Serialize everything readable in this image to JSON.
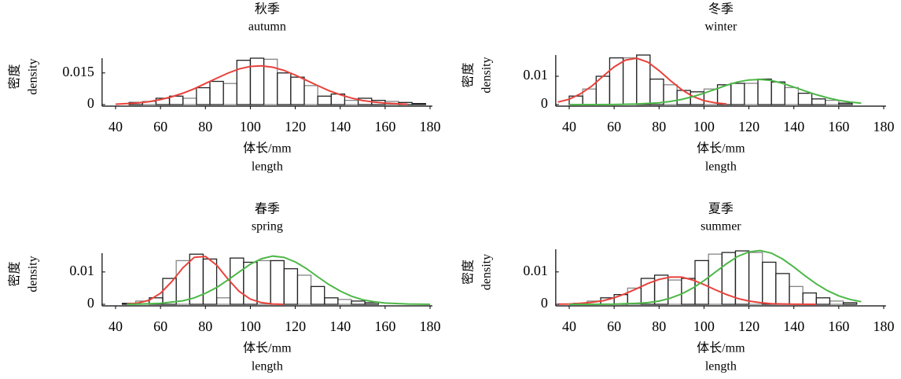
{
  "chart_data": [
    {
      "type": "histogram",
      "title": "秋季",
      "subtitle": "autumn",
      "xlabel": [
        "体长/mm",
        "length"
      ],
      "ylabel": [
        "密度",
        "density"
      ],
      "bins": [
        46,
        52,
        58,
        64,
        70,
        76,
        82,
        88,
        94,
        100,
        106,
        112,
        118,
        124,
        130,
        136,
        142,
        148,
        154,
        160,
        166,
        172,
        178
      ],
      "values": [
        0.001,
        0.0015,
        0.003,
        0.004,
        0.003,
        0.008,
        0.011,
        0.01,
        0.021,
        0.022,
        0.0215,
        0.015,
        0.013,
        0.009,
        0.004,
        0.005,
        0.002,
        0.003,
        0.002,
        0.0015,
        0.001,
        0.0005
      ],
      "bar_color": "#222222",
      "lines": [
        {
          "color": "#e8423b",
          "x": [
            40,
            45,
            50,
            55,
            60,
            65,
            70,
            75,
            80,
            85,
            90,
            95,
            100,
            105,
            110,
            115,
            120,
            125,
            130,
            135,
            140,
            145,
            150,
            155,
            160,
            165,
            170
          ],
          "values": [
            0.0002,
            0.0005,
            0.0008,
            0.0014,
            0.0024,
            0.0037,
            0.0054,
            0.0075,
            0.01,
            0.0125,
            0.0149,
            0.0169,
            0.0181,
            0.0184,
            0.0177,
            0.0162,
            0.014,
            0.0115,
            0.009,
            0.0066,
            0.0047,
            0.0031,
            0.0019,
            0.0012,
            0.0007,
            0.0004,
            0.0002
          ]
        }
      ],
      "xlim": [
        34,
        181
      ],
      "xticks": [
        40,
        60,
        80,
        100,
        120,
        140,
        160,
        180
      ],
      "ylim": [
        0,
        0.022
      ],
      "yticks": [
        0,
        0.015
      ]
    },
    {
      "type": "histogram",
      "title": "冬季",
      "subtitle": "winter",
      "xlabel": [
        "体长/mm",
        "length"
      ],
      "ylabel": [
        "密度",
        "density"
      ],
      "bins": [
        40,
        46,
        52,
        58,
        64,
        70,
        76,
        82,
        88,
        94,
        100,
        106,
        112,
        118,
        124,
        130,
        136,
        142,
        148,
        154,
        160,
        166
      ],
      "values": [
        0.003,
        0.0055,
        0.01,
        0.0165,
        0.0165,
        0.0175,
        0.009,
        0.007,
        0.005,
        0.0045,
        0.0055,
        0.007,
        0.0075,
        0.0075,
        0.009,
        0.008,
        0.006,
        0.004,
        0.002,
        0.0015,
        0.0005
      ],
      "bar_color": "#222222",
      "lines": [
        {
          "color": "#e8423b",
          "x": [
            35,
            40,
            45,
            50,
            55,
            60,
            65,
            70,
            75,
            80,
            85,
            90,
            95,
            100,
            105,
            110
          ],
          "values": [
            0.0009,
            0.0019,
            0.0038,
            0.0065,
            0.01,
            0.0133,
            0.0157,
            0.0164,
            0.015,
            0.012,
            0.0085,
            0.0053,
            0.0029,
            0.0014,
            0.0006,
            0.0002
          ]
        },
        {
          "color": "#4db848",
          "x": [
            40,
            50,
            60,
            70,
            80,
            85,
            90,
            95,
            100,
            105,
            110,
            115,
            120,
            125,
            130,
            135,
            140,
            145,
            150,
            155,
            160,
            165,
            170
          ],
          "values": [
            0,
            0,
            3e-05,
            0.0002,
            0.0006,
            0.0011,
            0.0018,
            0.0028,
            0.004,
            0.0054,
            0.0068,
            0.008,
            0.0087,
            0.0089,
            0.0085,
            0.0075,
            0.0062,
            0.0048,
            0.0035,
            0.0024,
            0.0015,
            0.0009,
            0.0005
          ]
        }
      ],
      "xlim": [
        34,
        181
      ],
      "xticks": [
        40,
        60,
        80,
        100,
        120,
        140,
        160,
        180
      ],
      "ylim": [
        0,
        0.0175
      ],
      "yticks": [
        0,
        0.01
      ]
    },
    {
      "type": "histogram",
      "title": "春季",
      "subtitle": "spring",
      "xlabel": [
        "体长/mm",
        "length"
      ],
      "ylabel": [
        "密度",
        "density"
      ],
      "bins": [
        43,
        49,
        55,
        61,
        67,
        73,
        79,
        85,
        91,
        97,
        103,
        109,
        115,
        121,
        127,
        133,
        139,
        145,
        151,
        157
      ],
      "values": [
        0.0003,
        0.001,
        0.002,
        0.008,
        0.0135,
        0.0155,
        0.014,
        0.002,
        0.0143,
        0.013,
        0.0135,
        0.0135,
        0.011,
        0.009,
        0.0055,
        0.002,
        0.0015,
        0.001,
        0.0005
      ],
      "bar_color": "#222222",
      "lines": [
        {
          "color": "#e8423b",
          "x": [
            45,
            50,
            55,
            60,
            65,
            70,
            75,
            80,
            85,
            90,
            95,
            100,
            105,
            110,
            115
          ],
          "values": [
            0.0001,
            0.0004,
            0.0013,
            0.0034,
            0.007,
            0.0113,
            0.0145,
            0.0148,
            0.0121,
            0.0078,
            0.004,
            0.0016,
            0.0005,
            0.0001,
            0
          ]
        },
        {
          "color": "#4db848",
          "x": [
            45,
            50,
            60,
            70,
            75,
            80,
            85,
            90,
            95,
            100,
            105,
            110,
            115,
            120,
            125,
            130,
            135,
            140,
            145,
            150,
            155,
            160,
            170,
            180
          ],
          "values": [
            0,
            5e-05,
            0.0003,
            0.0011,
            0.002,
            0.0034,
            0.0052,
            0.0075,
            0.01,
            0.0124,
            0.0141,
            0.0149,
            0.0145,
            0.0131,
            0.011,
            0.0085,
            0.0061,
            0.0041,
            0.0025,
            0.0014,
            0.0008,
            0.0004,
            0.0001,
            0
          ]
        }
      ],
      "xlim": [
        34,
        181
      ],
      "xticks": [
        40,
        60,
        80,
        100,
        120,
        140,
        160,
        180
      ],
      "ylim": [
        0,
        0.0158
      ],
      "yticks": [
        0,
        0.01
      ]
    },
    {
      "type": "histogram",
      "title": "夏季",
      "subtitle": "summer",
      "xlabel": [
        "体长/mm",
        "length"
      ],
      "ylabel": [
        "密度",
        "density"
      ],
      "bins": [
        42,
        48,
        54,
        60,
        66,
        72,
        78,
        84,
        90,
        96,
        102,
        108,
        114,
        120,
        126,
        132,
        138,
        144,
        150,
        156,
        162,
        168
      ],
      "values": [
        0.0003,
        0.001,
        0.002,
        0.003,
        0.005,
        0.008,
        0.009,
        0.0075,
        0.008,
        0.0135,
        0.0155,
        0.016,
        0.0165,
        0.016,
        0.013,
        0.0095,
        0.0055,
        0.0035,
        0.002,
        0.001,
        0.0005
      ],
      "bar_color": "#222222",
      "lines": [
        {
          "color": "#e8423b",
          "x": [
            35,
            40,
            45,
            50,
            55,
            60,
            65,
            70,
            75,
            80,
            85,
            90,
            95,
            100,
            105,
            110,
            115,
            120,
            125,
            130,
            140,
            150
          ],
          "values": [
            4e-05,
            0.0001,
            0.0003,
            0.0006,
            0.0011,
            0.002,
            0.0033,
            0.0048,
            0.0064,
            0.0077,
            0.0084,
            0.0084,
            0.0075,
            0.0061,
            0.0045,
            0.003,
            0.0018,
            0.001,
            0.0005,
            0.0002,
            3e-05,
            0
          ]
        },
        {
          "color": "#4db848",
          "x": [
            40,
            50,
            60,
            70,
            75,
            80,
            85,
            90,
            95,
            100,
            105,
            110,
            115,
            120,
            125,
            130,
            135,
            140,
            145,
            150,
            155,
            160,
            165,
            170
          ],
          "values": [
            0,
            1e-05,
            5e-05,
            0.0003,
            0.0005,
            0.001,
            0.0019,
            0.0032,
            0.005,
            0.0073,
            0.0099,
            0.0125,
            0.0148,
            0.0162,
            0.0166,
            0.0158,
            0.014,
            0.0115,
            0.0088,
            0.0063,
            0.0042,
            0.0026,
            0.0015,
            0.0008
          ]
        }
      ],
      "xlim": [
        34,
        181
      ],
      "xticks": [
        40,
        60,
        80,
        100,
        120,
        140,
        160,
        180
      ],
      "ylim": [
        0,
        0.017
      ],
      "yticks": [
        0,
        0.01
      ]
    }
  ]
}
